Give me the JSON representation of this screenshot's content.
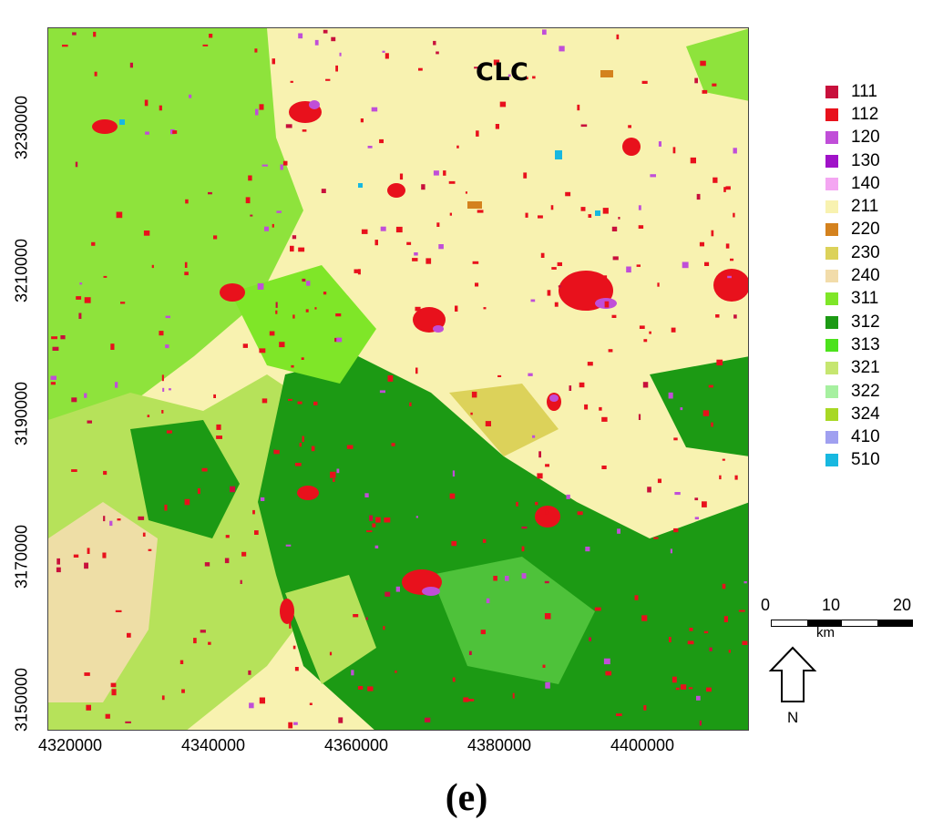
{
  "title": "CLC",
  "caption": "(e)",
  "x_ticks": [
    "4320000",
    "4340000",
    "4360000",
    "4380000",
    "4400000"
  ],
  "y_ticks": [
    "3230000",
    "3210000",
    "3190000",
    "3170000",
    "3150000"
  ],
  "legend": [
    {
      "code": "111",
      "color": "#c8103c"
    },
    {
      "code": "112",
      "color": "#e8111c"
    },
    {
      "code": "120",
      "color": "#c04ed8"
    },
    {
      "code": "130",
      "color": "#a012c8"
    },
    {
      "code": "140",
      "color": "#f4a6f2"
    },
    {
      "code": "211",
      "color": "#f8f2b0"
    },
    {
      "code": "220",
      "color": "#d4821e"
    },
    {
      "code": "230",
      "color": "#dcd25a"
    },
    {
      "code": "240",
      "color": "#f2dcaa"
    },
    {
      "code": "311",
      "color": "#7fe628"
    },
    {
      "code": "312",
      "color": "#1c9a14"
    },
    {
      "code": "313",
      "color": "#4ce21c"
    },
    {
      "code": "321",
      "color": "#c6e670"
    },
    {
      "code": "322",
      "color": "#a6f0a0"
    },
    {
      "code": "324",
      "color": "#a8d824"
    },
    {
      "code": "410",
      "color": "#a0a0f0"
    },
    {
      "code": "510",
      "color": "#18b8e0"
    }
  ],
  "scalebar": {
    "labels": [
      "0",
      "10",
      "20"
    ],
    "unit": "km"
  },
  "north_label": "N"
}
